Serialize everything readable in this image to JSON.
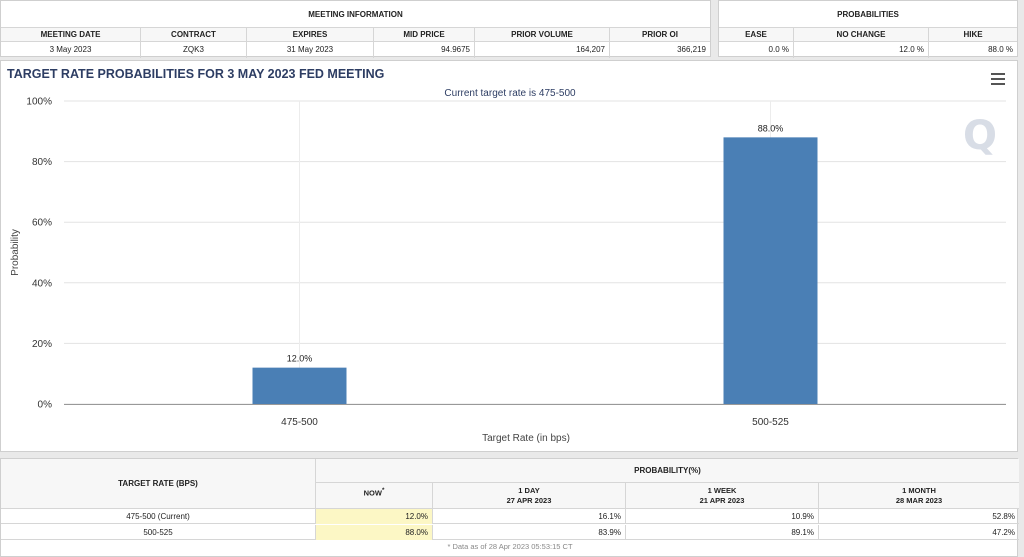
{
  "meeting_info": {
    "title": "MEETING INFORMATION",
    "columns": [
      "MEETING DATE",
      "CONTRACT",
      "EXPIRES",
      "MID PRICE",
      "PRIOR VOLUME",
      "PRIOR OI"
    ],
    "values": [
      "3 May 2023",
      "ZQK3",
      "31 May 2023",
      "94.9675",
      "164,207",
      "366,219"
    ]
  },
  "probabilities": {
    "title": "PROBABILITIES",
    "columns": [
      "EASE",
      "NO CHANGE",
      "HIKE"
    ],
    "values": [
      "0.0 %",
      "12.0 %",
      "88.0 %"
    ]
  },
  "chart": {
    "title": "TARGET RATE PROBABILITIES FOR 3 MAY 2023 FED MEETING",
    "subtitle": "Current target rate is 475-500",
    "menu_icon": "hamburger-menu-icon",
    "watermark": "Q",
    "bar_color": "#4a7fb5"
  },
  "chart_data": {
    "type": "bar",
    "title": "TARGET RATE PROBABILITIES FOR 3 MAY 2023 FED MEETING",
    "subtitle": "Current target rate is 475-500",
    "categories": [
      "475-500",
      "500-525"
    ],
    "values": [
      12.0,
      88.0
    ],
    "data_labels": [
      "12.0%",
      "88.0%"
    ],
    "xlabel": "Target Rate (in bps)",
    "ylabel": "Probability",
    "ylim": [
      0,
      100
    ],
    "yticks": [
      "0%",
      "20%",
      "40%",
      "60%",
      "80%",
      "100%"
    ],
    "grid": true
  },
  "bottom_table": {
    "rate_header": "TARGET RATE (BPS)",
    "prob_header": "PROBABILITY(%)",
    "sub_headers": [
      {
        "label": "NOW",
        "date": "",
        "mark": "*"
      },
      {
        "label": "1 DAY",
        "date": "27 APR 2023"
      },
      {
        "label": "1 WEEK",
        "date": "21 APR 2023"
      },
      {
        "label": "1 MONTH",
        "date": "28 MAR 2023"
      }
    ],
    "rows": [
      {
        "rate": "475-500 (Current)",
        "now": "12.0%",
        "day": "16.1%",
        "week": "10.9%",
        "month": "52.8%"
      },
      {
        "rate": "500-525",
        "now": "88.0%",
        "day": "83.9%",
        "week": "89.1%",
        "month": "47.2%"
      }
    ],
    "footnote": "* Data as of 28 Apr 2023 05:53:15 CT"
  }
}
